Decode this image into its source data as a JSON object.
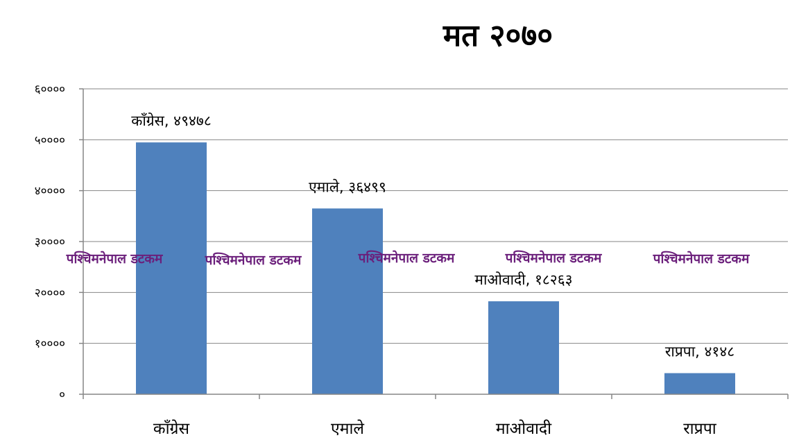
{
  "chart_data": {
    "type": "bar",
    "title": "मत २०७०",
    "categories": [
      "काँग्रेस",
      "एमाले",
      "माओवादी",
      "राप्रपा"
    ],
    "values": [
      49478,
      36499,
      18263,
      4148
    ],
    "data_labels": [
      "काँग्रेस, ४९४७८",
      "एमाले, ३६४९९",
      "माओवादी, १८२६३",
      "राप्रपा, ४१४८"
    ],
    "ylim": [
      0,
      60000
    ],
    "yticks": [
      0,
      10000,
      20000,
      30000,
      40000,
      50000,
      60000
    ],
    "ytick_labels": [
      "०",
      "१००००",
      "२००००",
      "३००००",
      "४००००",
      "५००००",
      "६००००"
    ],
    "xlabel": "",
    "ylabel": "",
    "grid": true,
    "legend": "none",
    "bar_color": "#4F81BD"
  },
  "watermark": {
    "text": "पश्चिमनेपाल डटकम",
    "color": "#6B1F7B",
    "count": 5
  }
}
